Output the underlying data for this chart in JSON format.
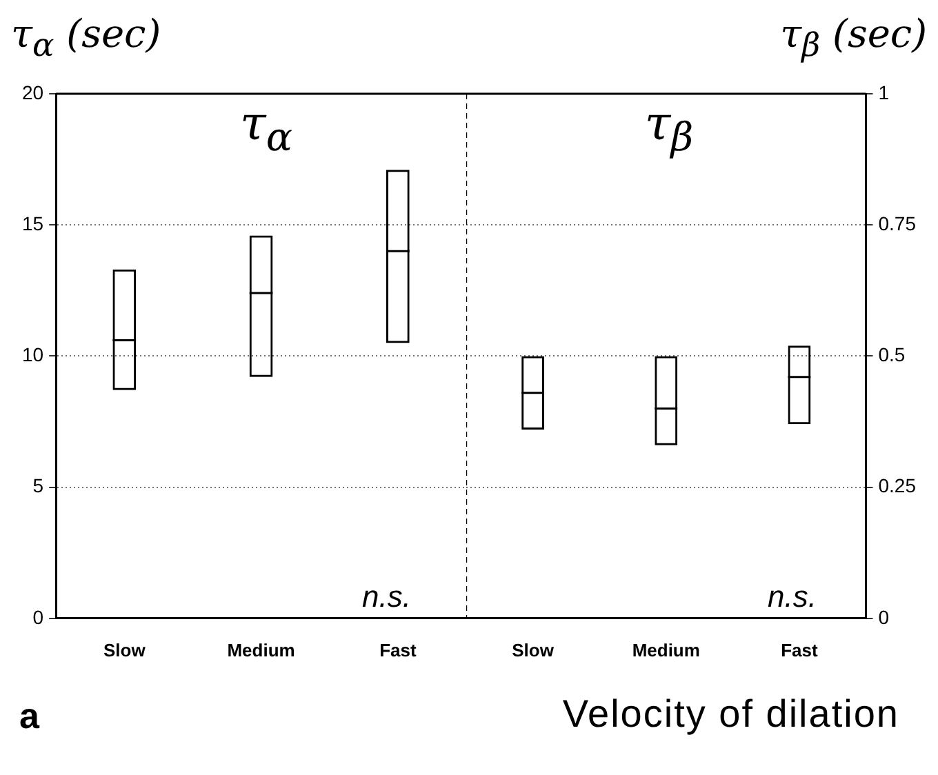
{
  "chart_data": [
    {
      "type": "box",
      "title": "τ$_{α}$",
      "ylabel": "τ$_{α}$ (sec)",
      "categories": [
        "Slow",
        "Medium",
        "Fast"
      ],
      "ylim": [
        0,
        20
      ],
      "yticks": [
        0,
        5,
        10,
        15,
        20
      ],
      "grid": "y",
      "annotations": [
        "n.s.",
        "a"
      ],
      "series": [
        {
          "color": "#000000",
          "boxes": [
            {
              "low": 8.7,
              "q1": 8.7,
              "median": 10.6,
              "q3": 13.3,
              "high": 13.3
            },
            {
              "low": 9.2,
              "q1": 9.2,
              "median": 12.4,
              "q3": 14.6,
              "high": 14.6
            },
            {
              "low": 10.5,
              "q1": 10.5,
              "median": 14.0,
              "q3": 17.1,
              "high": 17.1
            }
          ]
        }
      ]
    },
    {
      "type": "box",
      "title": "τ$_{β}$",
      "y2label": "τ$_{β}$ (sec)",
      "xlabel": "Velocity of dilation",
      "categories": [
        "Slow",
        "Medium",
        "Fast"
      ],
      "y2lim": [
        0,
        1
      ],
      "y2ticks": [
        0,
        0.25,
        0.5,
        0.75,
        1
      ],
      "grid": "y",
      "annotations": [
        "n.s."
      ],
      "series": [
        {
          "axis": "y2",
          "color": "#000000",
          "boxes": [
            {
              "low": 0.36,
              "q1": 0.36,
              "median": 0.43,
              "q3": 0.5,
              "high": 0.5
            },
            {
              "low": 0.33,
              "q1": 0.33,
              "median": 0.4,
              "q3": 0.5,
              "high": 0.5
            },
            {
              "low": 0.37,
              "q1": 0.37,
              "median": 0.46,
              "q3": 0.52,
              "high": 0.52
            }
          ]
        }
      ]
    }
  ]
}
